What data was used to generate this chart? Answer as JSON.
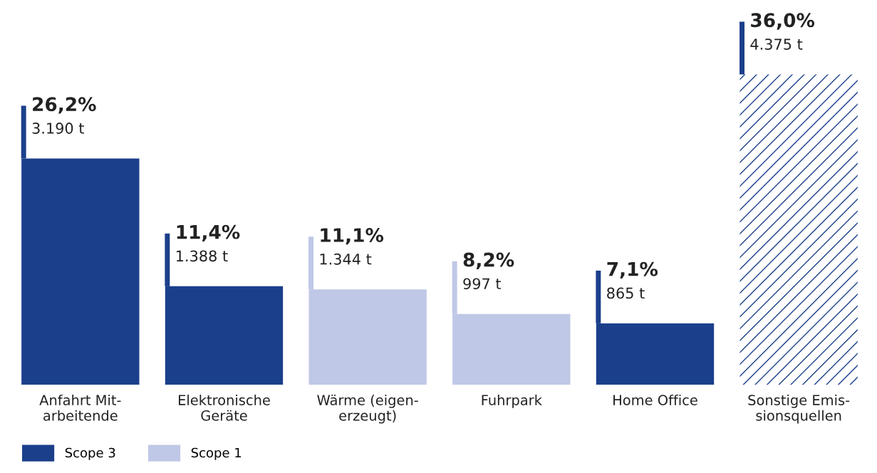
{
  "chart_data": {
    "type": "bar",
    "categories": [
      "Anfahrt Mit-\narbeitende",
      "Elektronische\nGeräte",
      "Wärme (eigen-\nerzeugt)",
      "Fuhrpark",
      "Home Office",
      "Sonstige Emis-\nsionsquellen"
    ],
    "series": [
      {
        "name": "Scope 3",
        "color": "#1b3f8b",
        "values": [
          3190,
          1388,
          null,
          null,
          865,
          null
        ],
        "value_labels": [
          "26,2%\n3.190 t",
          "11,4%\n1.388 t",
          null,
          null,
          "7,1%\n865 t",
          null
        ]
      },
      {
        "name": "Scope 1",
        "color": "#bfc8e6",
        "values": [
          null,
          null,
          1344,
          997,
          null,
          null
        ],
        "value_labels": [
          null,
          null,
          "11,1%\n1.344 t",
          "8,2%\n997 t",
          null,
          null
        ]
      },
      {
        "color": "#1b3f8b",
        "values": [
          null,
          null,
          null,
          null,
          null,
          4375
        ],
        "value_labels": [
          null,
          null,
          null,
          null,
          null,
          "36,0%\n4.375 t"
        ]
      }
    ],
    "legend": "bottom left",
    "grid": false
  }
}
